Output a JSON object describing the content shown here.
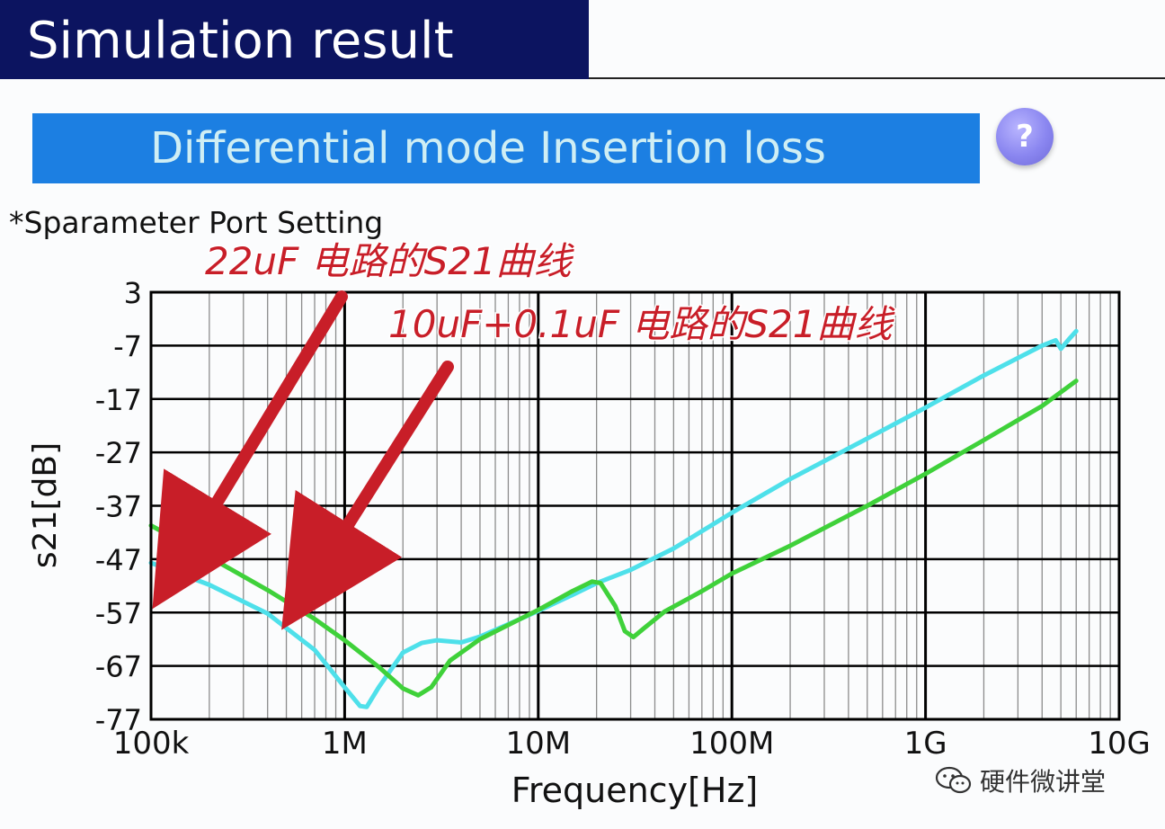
{
  "header": {
    "title": "Simulation result"
  },
  "banner": {
    "title": "Differential mode Insertion loss"
  },
  "help": {
    "label": "?"
  },
  "port_setting": {
    "label": "*Sparameter Port Setting"
  },
  "watermark": {
    "text": "硬件微讲堂",
    "icon": "wechat-icon"
  },
  "colors": {
    "curve_22uF": "#4ee0ea",
    "curve_10uF": "#3fd13a",
    "annotation": "#c81e28"
  },
  "chart_data": {
    "type": "line",
    "xlabel": "Frequency[Hz]",
    "ylabel": "s21[dB]",
    "x_scale": "log",
    "xlim": [
      100000,
      10000000000
    ],
    "ylim": [
      -77,
      3
    ],
    "grid": true,
    "x_ticks": [
      {
        "value": 100000,
        "label": "100k"
      },
      {
        "value": 1000000,
        "label": "1M"
      },
      {
        "value": 10000000,
        "label": "10M"
      },
      {
        "value": 100000000,
        "label": "100M"
      },
      {
        "value": 1000000000,
        "label": "1G"
      },
      {
        "value": 10000000000,
        "label": "10G"
      }
    ],
    "y_ticks": [
      {
        "value": 3,
        "label": "3"
      },
      {
        "value": -7,
        "label": "-7"
      },
      {
        "value": -17,
        "label": "-17"
      },
      {
        "value": -27,
        "label": "-27"
      },
      {
        "value": -37,
        "label": "-37"
      },
      {
        "value": -47,
        "label": "-47"
      },
      {
        "value": -57,
        "label": "-57"
      },
      {
        "value": -67,
        "label": "-67"
      },
      {
        "value": -77,
        "label": "-77"
      }
    ],
    "annotations": [
      {
        "text": "22uF 电路的S21曲线",
        "target": {
          "x": 120000,
          "y": -52
        }
      },
      {
        "text": "10uF+0.1uF 电路的S21曲线",
        "target": {
          "x": 560000,
          "y": -56
        }
      }
    ],
    "series": [
      {
        "color": "#4ee0ea",
        "points": [
          [
            100000,
            -47.7
          ],
          [
            200000,
            -51.8
          ],
          [
            400000,
            -57.2
          ],
          [
            700000,
            -64.0
          ],
          [
            1000000,
            -71.0
          ],
          [
            1200000,
            -74.5
          ],
          [
            1300000,
            -74.7
          ],
          [
            1500000,
            -71.0
          ],
          [
            2000000,
            -64.5
          ],
          [
            2500000,
            -62.7
          ],
          [
            3000000,
            -62.2
          ],
          [
            4000000,
            -62.6
          ],
          [
            5000000,
            -61.5
          ],
          [
            7000000,
            -59.2
          ],
          [
            10000000,
            -56.7
          ],
          [
            15000000,
            -53.7
          ],
          [
            20000000,
            -51.5
          ],
          [
            30000000,
            -49.0
          ],
          [
            50000000,
            -45.0
          ],
          [
            100000000,
            -38.3
          ],
          [
            200000000,
            -32.0
          ],
          [
            500000000,
            -24.4
          ],
          [
            1000000000,
            -18.6
          ],
          [
            2000000000,
            -12.6
          ],
          [
            4000000000,
            -7.0
          ],
          [
            4700000000,
            -6.0
          ],
          [
            5000000000,
            -7.6
          ],
          [
            5500000000,
            -5.8
          ],
          [
            6000000000,
            -4.3
          ]
        ]
      },
      {
        "color": "#3fd13a",
        "points": [
          [
            100000,
            -40.7
          ],
          [
            200000,
            -46.6
          ],
          [
            400000,
            -52.8
          ],
          [
            700000,
            -58.2
          ],
          [
            1000000,
            -62.2
          ],
          [
            1500000,
            -67.2
          ],
          [
            2000000,
            -71.2
          ],
          [
            2400000,
            -72.5
          ],
          [
            2800000,
            -71.0
          ],
          [
            3500000,
            -66.0
          ],
          [
            5000000,
            -62.0
          ],
          [
            10000000,
            -56.5
          ],
          [
            15000000,
            -53.0
          ],
          [
            19000000,
            -51.2
          ],
          [
            21000000,
            -51.5
          ],
          [
            25000000,
            -55.8
          ],
          [
            28000000,
            -60.5
          ],
          [
            31000000,
            -61.6
          ],
          [
            35000000,
            -60.0
          ],
          [
            45000000,
            -56.8
          ],
          [
            70000000,
            -53.0
          ],
          [
            100000000,
            -49.7
          ],
          [
            200000000,
            -44.5
          ],
          [
            500000000,
            -37.0
          ],
          [
            1000000000,
            -31.0
          ],
          [
            2000000000,
            -24.7
          ],
          [
            4000000000,
            -18.3
          ],
          [
            6000000000,
            -13.6
          ]
        ]
      }
    ]
  }
}
